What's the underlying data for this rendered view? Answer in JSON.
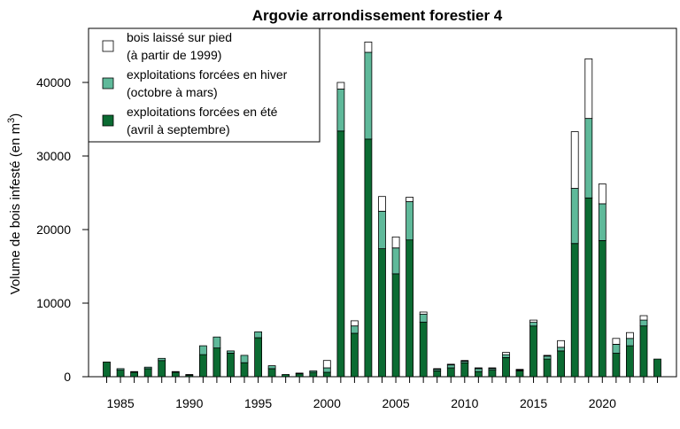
{
  "chart_data": {
    "type": "bar",
    "stacked": true,
    "title": "Argovie arrondissement forestier 4",
    "xlabel": "",
    "ylabel": "Volume de bois infesté (en m",
    "ylabel_superscript": "3",
    "ylabel_suffix": ")",
    "ylim": [
      0,
      47000
    ],
    "yticks": [
      0,
      10000,
      20000,
      30000,
      40000
    ],
    "ytick_labels": [
      "0",
      "10000",
      "20000",
      "30000",
      "40000"
    ],
    "xtick_labels": [
      "1985",
      "1990",
      "1995",
      "2000",
      "2005",
      "2010",
      "2015",
      "2020"
    ],
    "xtick_years": [
      1985,
      1990,
      1995,
      2000,
      2005,
      2010,
      2015,
      2020
    ],
    "grid": false,
    "legend_position": "top-left",
    "categories": [
      1984,
      1985,
      1986,
      1987,
      1988,
      1989,
      1990,
      1991,
      1992,
      1993,
      1994,
      1995,
      1996,
      1997,
      1998,
      1999,
      2000,
      2001,
      2002,
      2003,
      2004,
      2005,
      2006,
      2007,
      2008,
      2009,
      2010,
      2011,
      2012,
      2013,
      2014,
      2015,
      2016,
      2017,
      2018,
      2019,
      2020,
      2021,
      2022,
      2023,
      2024
    ],
    "series": [
      {
        "name": "exploitations forcées en été",
        "name_line2": "(avril à septembre)",
        "color": "#0b6b32",
        "values": [
          2000,
          900,
          600,
          1100,
          2200,
          600,
          200,
          3000,
          3900,
          3200,
          1900,
          5300,
          1100,
          300,
          400,
          600,
          600,
          33400,
          5900,
          32300,
          17400,
          14000,
          18600,
          7400,
          800,
          1200,
          1900,
          700,
          900,
          2600,
          800,
          6900,
          2400,
          3500,
          18100,
          24300,
          18500,
          3200,
          4200,
          6900,
          2400
        ]
      },
      {
        "name": "exploitations forcées en hiver",
        "name_line2": "(octobre à mars)",
        "color": "#5fb99a",
        "values": [
          0,
          200,
          100,
          200,
          300,
          100,
          100,
          1200,
          1500,
          300,
          1000,
          800,
          400,
          0,
          100,
          200,
          600,
          5700,
          1000,
          11800,
          5100,
          3500,
          5200,
          1100,
          200,
          400,
          200,
          400,
          200,
          400,
          100,
          500,
          400,
          500,
          7500,
          10800,
          5000,
          1200,
          1000,
          800,
          0
        ]
      },
      {
        "name": "bois laissé sur pied",
        "name_line2": "(à partir de 1999)",
        "color": "#ffffff",
        "values": [
          0,
          0,
          0,
          0,
          0,
          0,
          0,
          0,
          0,
          0,
          0,
          0,
          0,
          0,
          0,
          0,
          1000,
          900,
          700,
          1400,
          2000,
          1500,
          600,
          300,
          100,
          100,
          100,
          100,
          100,
          300,
          100,
          300,
          100,
          900,
          7700,
          8100,
          2700,
          800,
          800,
          600,
          0
        ]
      }
    ]
  }
}
